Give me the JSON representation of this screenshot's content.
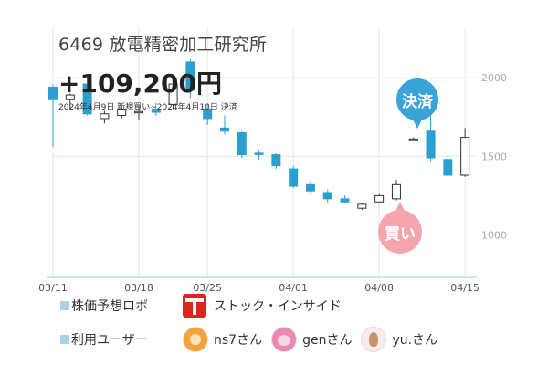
{
  "stock_title": "6469 放電精密加工研究所",
  "profit": "+109,200円",
  "period": "2024年4月9日 新規買い~2024年4月10日 決済",
  "markers": {
    "sell_label": "決済",
    "buy_label": "買い"
  },
  "colors": {
    "up_candle": "#ffffff",
    "down_candle": "#2c9fd0",
    "sell_marker": "#3aa3d8",
    "buy_marker": "#f5a6ac",
    "grid": "#e6e6e6"
  },
  "chart_data": {
    "type": "candlestick",
    "x_tick_labels": [
      "03/11",
      "03/18",
      "03/25",
      "04/01",
      "04/08",
      "04/15"
    ],
    "y_tick_labels": [
      "2000",
      "1500",
      "1000"
    ],
    "y_ticks": [
      2000,
      1500,
      1000
    ],
    "ylim": [
      730,
      2320
    ],
    "grid": true,
    "dates": [
      "03/11",
      "03/12",
      "03/13",
      "03/14",
      "03/15",
      "03/18",
      "03/19",
      "03/21",
      "03/22",
      "03/25",
      "03/26",
      "03/27",
      "03/28",
      "03/29",
      "04/01",
      "04/02",
      "04/03",
      "04/04",
      "04/05",
      "04/08",
      "04/09",
      "04/10",
      "04/11",
      "04/12",
      "04/15"
    ],
    "ohlc": [
      [
        1940,
        1960,
        1560,
        1860
      ],
      [
        1860,
        1900,
        1800,
        1890
      ],
      [
        1960,
        2000,
        1760,
        1770
      ],
      [
        1740,
        1790,
        1710,
        1770
      ],
      [
        1760,
        1810,
        1740,
        1800
      ],
      [
        1780,
        1820,
        1730,
        1785
      ],
      [
        1800,
        1840,
        1760,
        1780
      ],
      [
        1830,
        1990,
        1800,
        1960
      ],
      [
        2100,
        2120,
        1870,
        1920
      ],
      [
        1800,
        1830,
        1700,
        1740
      ],
      [
        1680,
        1760,
        1640,
        1660
      ],
      [
        1650,
        1660,
        1490,
        1510
      ],
      [
        1520,
        1540,
        1480,
        1515
      ],
      [
        1510,
        1520,
        1420,
        1440
      ],
      [
        1420,
        1440,
        1300,
        1310
      ],
      [
        1320,
        1340,
        1260,
        1280
      ],
      [
        1270,
        1290,
        1200,
        1230
      ],
      [
        1230,
        1250,
        1200,
        1210
      ],
      [
        1170,
        1200,
        1160,
        1195
      ],
      [
        1210,
        1260,
        1200,
        1250
      ],
      [
        1230,
        1350,
        1220,
        1320
      ],
      [
        1610,
        1620,
        1600,
        1610
      ],
      [
        1660,
        1780,
        1470,
        1490
      ],
      [
        1480,
        1500,
        1370,
        1380
      ],
      [
        1380,
        1680,
        1370,
        1620
      ]
    ]
  },
  "footer": {
    "robot_label": "株価予想ロボ",
    "robot_name": "ストック・インサイド",
    "users_label": "利用ユーザー",
    "users": [
      {
        "name": "ns7さん",
        "icon": "cat-avatar-icon"
      },
      {
        "name": "genさん",
        "icon": "girl-avatar-icon"
      },
      {
        "name": "yu.さん",
        "icon": "woman-avatar-icon"
      }
    ]
  }
}
